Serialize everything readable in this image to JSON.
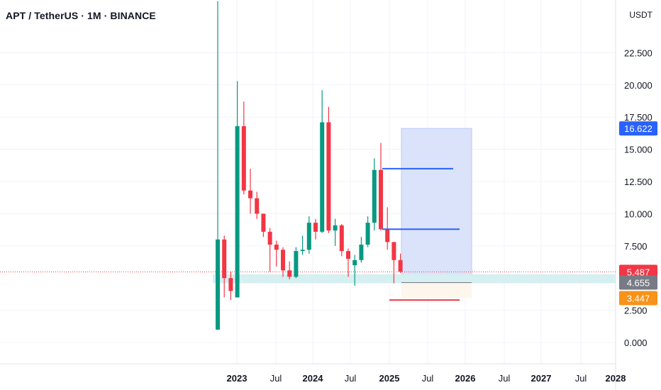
{
  "header": {
    "title": "APT / TetherUS · 1M · BINANCE",
    "currency": "USDT"
  },
  "chart_data": {
    "type": "candlestick",
    "ylim": [
      -1.0,
      26.5
    ],
    "y_ticks": [
      "0.000",
      "2.500",
      "7.500",
      "10.000",
      "12.500",
      "15.000",
      "17.500",
      "20.000",
      "22.500"
    ],
    "x_ticks": [
      {
        "label": "2023",
        "year": true
      },
      {
        "label": "Jul",
        "year": false
      },
      {
        "label": "2024",
        "year": true
      },
      {
        "label": "Jul",
        "year": false
      },
      {
        "label": "2025",
        "year": true
      },
      {
        "label": "Jul",
        "year": false
      },
      {
        "label": "2026",
        "year": true
      },
      {
        "label": "Jul",
        "year": false
      },
      {
        "label": "2027",
        "year": true
      },
      {
        "label": "Jul",
        "year": false
      },
      {
        "label": "2028",
        "year": true
      }
    ],
    "candles": [
      {
        "o": 1.0,
        "h": 26.5,
        "l": 1.0,
        "c": 8.0
      },
      {
        "o": 8.0,
        "h": 8.3,
        "l": 3.5,
        "c": 5.0
      },
      {
        "o": 5.0,
        "h": 5.5,
        "l": 3.3,
        "c": 4.0
      },
      {
        "o": 3.5,
        "h": 20.3,
        "l": 3.5,
        "c": 16.8
      },
      {
        "o": 16.8,
        "h": 18.7,
        "l": 11.5,
        "c": 11.8
      },
      {
        "o": 11.8,
        "h": 13.5,
        "l": 10.0,
        "c": 11.2
      },
      {
        "o": 11.2,
        "h": 11.7,
        "l": 9.6,
        "c": 10.0
      },
      {
        "o": 10.0,
        "h": 10.0,
        "l": 8.2,
        "c": 8.6
      },
      {
        "o": 8.6,
        "h": 8.9,
        "l": 5.5,
        "c": 7.6
      },
      {
        "o": 7.6,
        "h": 7.9,
        "l": 5.9,
        "c": 7.2
      },
      {
        "o": 7.2,
        "h": 7.4,
        "l": 5.1,
        "c": 5.6
      },
      {
        "o": 5.6,
        "h": 6.3,
        "l": 4.9,
        "c": 5.1
      },
      {
        "o": 5.1,
        "h": 7.4,
        "l": 5.0,
        "c": 7.1
      },
      {
        "o": 7.1,
        "h": 8.3,
        "l": 6.8,
        "c": 7.2
      },
      {
        "o": 7.2,
        "h": 9.8,
        "l": 6.9,
        "c": 9.3
      },
      {
        "o": 9.3,
        "h": 9.6,
        "l": 8.0,
        "c": 8.6
      },
      {
        "o": 8.6,
        "h": 19.6,
        "l": 8.5,
        "c": 17.1
      },
      {
        "o": 17.1,
        "h": 18.3,
        "l": 8.5,
        "c": 8.7
      },
      {
        "o": 8.7,
        "h": 9.6,
        "l": 7.5,
        "c": 9.1
      },
      {
        "o": 9.1,
        "h": 9.2,
        "l": 6.7,
        "c": 7.1
      },
      {
        "o": 7.1,
        "h": 7.3,
        "l": 5.1,
        "c": 6.5
      },
      {
        "o": 6.0,
        "h": 6.8,
        "l": 4.4,
        "c": 6.4
      },
      {
        "o": 6.4,
        "h": 8.2,
        "l": 6.2,
        "c": 7.6
      },
      {
        "o": 7.6,
        "h": 9.8,
        "l": 7.4,
        "c": 9.3
      },
      {
        "o": 9.3,
        "h": 14.3,
        "l": 8.7,
        "c": 13.4
      },
      {
        "o": 13.4,
        "h": 15.5,
        "l": 8.7,
        "c": 8.8
      },
      {
        "o": 8.8,
        "h": 10.5,
        "l": 7.2,
        "c": 7.8
      },
      {
        "o": 7.8,
        "h": 7.8,
        "l": 4.6,
        "c": 6.4
      },
      {
        "o": 6.4,
        "h": 6.9,
        "l": 5.4,
        "c": 5.5
      }
    ],
    "drawings": {
      "target_zone": {
        "top": 16.622,
        "bottom": 4.655
      },
      "stop_zone": {
        "top": 4.655,
        "bottom": 3.447
      },
      "support_band": {
        "top": 5.3,
        "bottom": 4.6
      },
      "resistance_lines": [
        13.5,
        8.8
      ],
      "stop_line": 3.3,
      "current_price_line": 5.487
    },
    "price_labels": [
      {
        "value": "16.622",
        "color": "#2962ff",
        "y": 16.622
      },
      {
        "value": "5.487",
        "color": "#f23645",
        "y": 5.487
      },
      {
        "value": "4.655",
        "color": "#787b86",
        "y": 4.655
      },
      {
        "value": "3.447",
        "color": "#f7931a",
        "y": 3.447
      }
    ],
    "colors": {
      "up": "#089981",
      "down": "#f23645",
      "line_blue": "#2962ff",
      "line_red": "#f23645",
      "target_fill": "#dbe3fb",
      "band_fill": "#d6eff0"
    }
  }
}
